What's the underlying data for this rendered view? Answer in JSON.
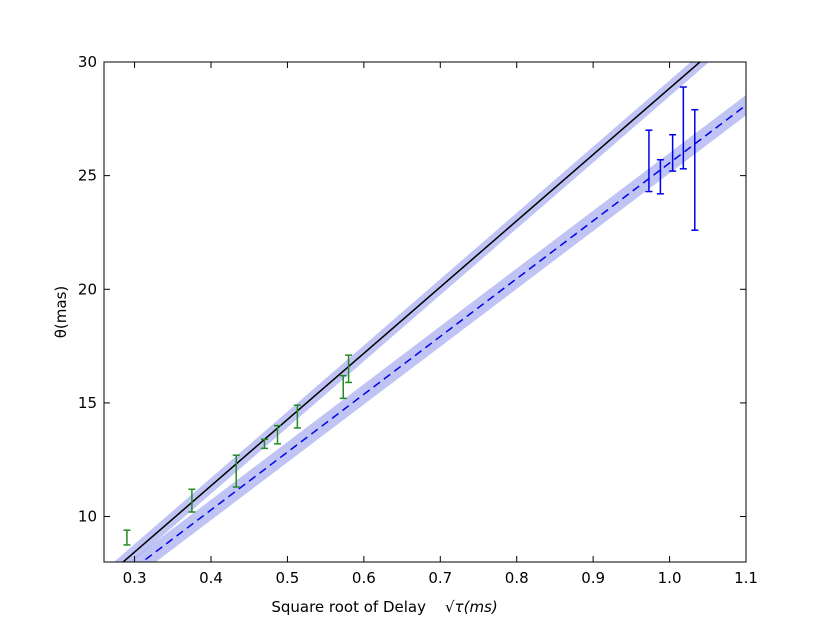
{
  "chart_data": {
    "type": "line",
    "xlabel": "Square root of Delay",
    "xlabel_math": "√τ(ms)",
    "ylabel": "θ(mas)",
    "xlim": [
      0.26,
      1.1
    ],
    "ylim": [
      8,
      30
    ],
    "xticks": [
      0.3,
      0.4,
      0.5,
      0.6,
      0.7,
      0.8,
      0.9,
      1.0,
      1.1
    ],
    "xtick_labels": [
      "0.3",
      "0.4",
      "0.5",
      "0.6",
      "0.7",
      "0.8",
      "0.9",
      "1.0",
      "1.1"
    ],
    "yticks": [
      10,
      15,
      20,
      25,
      30
    ],
    "ytick_labels": [
      "10",
      "15",
      "20",
      "25",
      "30"
    ],
    "grid": false,
    "colors": {
      "green": "#228b22",
      "blue": "#0000ee",
      "band": "#aab0f0",
      "black": "#000000"
    },
    "fit_lines": [
      {
        "style": "solid",
        "color": "#000000",
        "points": [
          [
            0.285,
            8.0
          ],
          [
            1.05,
            30.3
          ]
        ],
        "band_halfwidth": 0.35
      },
      {
        "style": "dashed",
        "color": "#0000ee",
        "points": [
          [
            0.31,
            8.0
          ],
          [
            1.1,
            28.1
          ]
        ],
        "band_halfwidth": 0.45
      }
    ],
    "error_series": [
      {
        "color": "#228b22",
        "x": [
          0.29,
          0.375,
          0.433,
          0.47,
          0.487,
          0.513,
          0.573,
          0.58
        ],
        "y_low": [
          8.75,
          10.2,
          11.3,
          13.0,
          13.2,
          13.9,
          15.2,
          15.9
        ],
        "y_high": [
          9.4,
          11.2,
          12.7,
          13.4,
          14.0,
          14.9,
          16.2,
          17.1
        ]
      },
      {
        "color": "#0000ee",
        "x": [
          0.973,
          0.988,
          1.004,
          1.018,
          1.033
        ],
        "y_low": [
          24.3,
          24.2,
          25.2,
          25.3,
          22.6
        ],
        "y_high": [
          27.0,
          25.7,
          26.8,
          28.9,
          27.9
        ]
      }
    ]
  }
}
